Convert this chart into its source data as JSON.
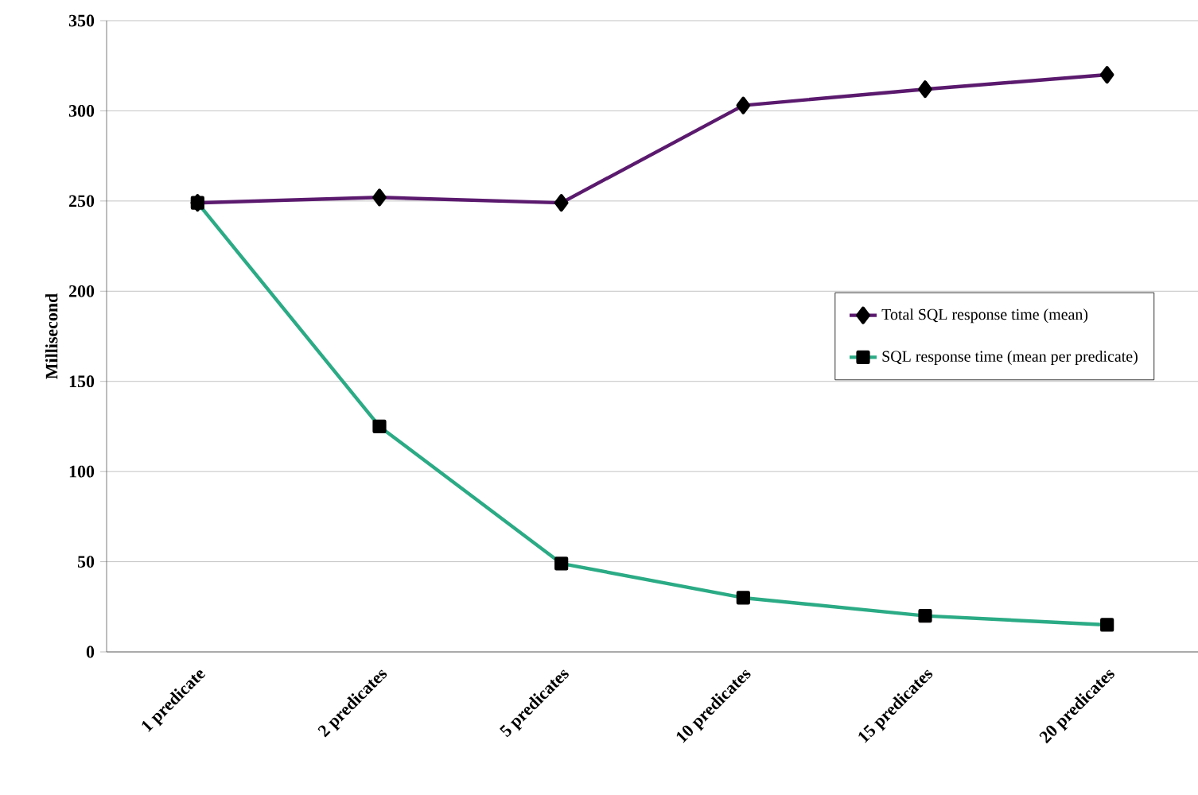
{
  "chart_data": {
    "type": "line",
    "ylabel": "Millisecond",
    "categories": [
      "1 predicate",
      "2 predicates",
      "5 predicates",
      "10 predicates",
      "15 predicates",
      "20 predicates"
    ],
    "series": [
      {
        "name": "Total SQL response time (mean)",
        "color": "#5b1a6e",
        "marker": "diamond",
        "values": [
          249,
          252,
          249,
          303,
          312,
          320
        ]
      },
      {
        "name": "SQL response time (mean per predicate)",
        "color": "#2bab85",
        "marker": "square",
        "values": [
          249,
          125,
          49,
          30,
          20,
          15
        ]
      }
    ],
    "ylim": [
      0,
      350
    ],
    "yticks": [
      0,
      50,
      100,
      150,
      200,
      250,
      300,
      350
    ],
    "grid": "y",
    "legend": "right",
    "line_style": "solid"
  }
}
